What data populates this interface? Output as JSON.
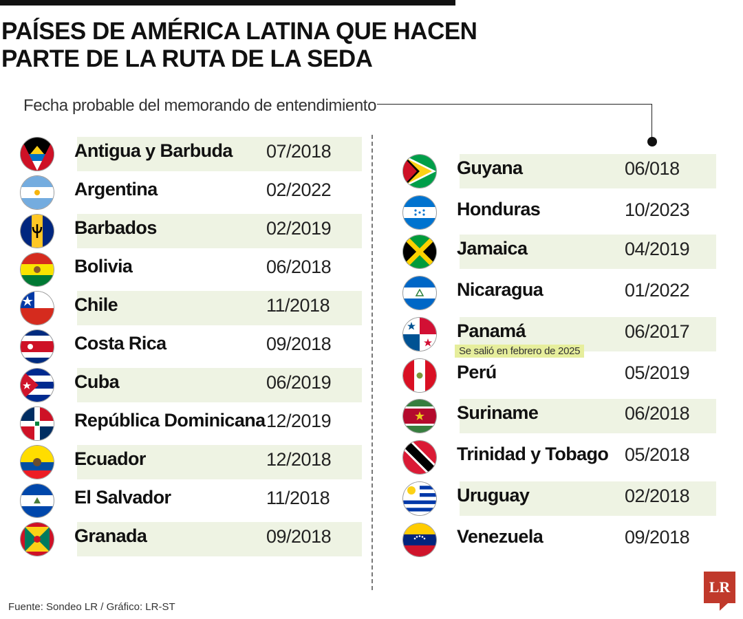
{
  "title_line1": "PAÍSES DE AMÉRICA LATINA QUE HACEN",
  "title_line2": "PARTE DE LA RUTA DE LA SEDA",
  "subtitle": "Fecha probable del memorando de entendimiento",
  "left_column": [
    {
      "flag": "antigua-and-barbuda-flag-icon",
      "name": "Antigua y Barbuda",
      "date": "07/2018"
    },
    {
      "flag": "argentina-flag-icon",
      "name": "Argentina",
      "date": "02/2022"
    },
    {
      "flag": "barbados-flag-icon",
      "name": "Barbados",
      "date": "02/2019"
    },
    {
      "flag": "bolivia-flag-icon",
      "name": "Bolivia",
      "date": "06/2018"
    },
    {
      "flag": "chile-flag-icon",
      "name": "Chile",
      "date": "11/2018"
    },
    {
      "flag": "costa-rica-flag-icon",
      "name": "Costa Rica",
      "date": "09/2018"
    },
    {
      "flag": "cuba-flag-icon",
      "name": "Cuba",
      "date": "06/2019"
    },
    {
      "flag": "dominican-republic-flag-icon",
      "name": "República Dominicana",
      "date": "12/2019"
    },
    {
      "flag": "ecuador-flag-icon",
      "name": "Ecuador",
      "date": "12/2018"
    },
    {
      "flag": "el-salvador-flag-icon",
      "name": "El Salvador",
      "date": "11/2018"
    },
    {
      "flag": "grenada-flag-icon",
      "name": "Granada",
      "date": "09/2018"
    }
  ],
  "right_column": [
    {
      "flag": "guyana-flag-icon",
      "name": "Guyana",
      "date": "06/018"
    },
    {
      "flag": "honduras-flag-icon",
      "name": "Honduras",
      "date": "10/2023"
    },
    {
      "flag": "jamaica-flag-icon",
      "name": "Jamaica",
      "date": "04/2019"
    },
    {
      "flag": "nicaragua-flag-icon",
      "name": "Nicaragua",
      "date": "01/2022"
    },
    {
      "flag": "panama-flag-icon",
      "name": "Panamá",
      "date": "06/2017"
    },
    {
      "flag": "peru-flag-icon",
      "name": "Perú",
      "date": "05/2019"
    },
    {
      "flag": "suriname-flag-icon",
      "name": "Suriname",
      "date": "06/2018"
    },
    {
      "flag": "trinidad-and-tobago-flag-icon",
      "name": "Trinidad y Tobago",
      "date": "05/2018"
    },
    {
      "flag": "uruguay-flag-icon",
      "name": "Uruguay",
      "date": "02/2018"
    },
    {
      "flag": "venezuela-flag-icon",
      "name": "Venezuela",
      "date": "09/2018"
    }
  ],
  "panama_note": "Se salió en febrero de 2025",
  "source": "Fuente: Sondeo LR / Gráfico: LR-ST",
  "logo_text": "LR",
  "colors": {
    "row_shade": "#eef3e3",
    "note_highlight": "#e6ee9c",
    "logo_red": "#c0392b"
  }
}
